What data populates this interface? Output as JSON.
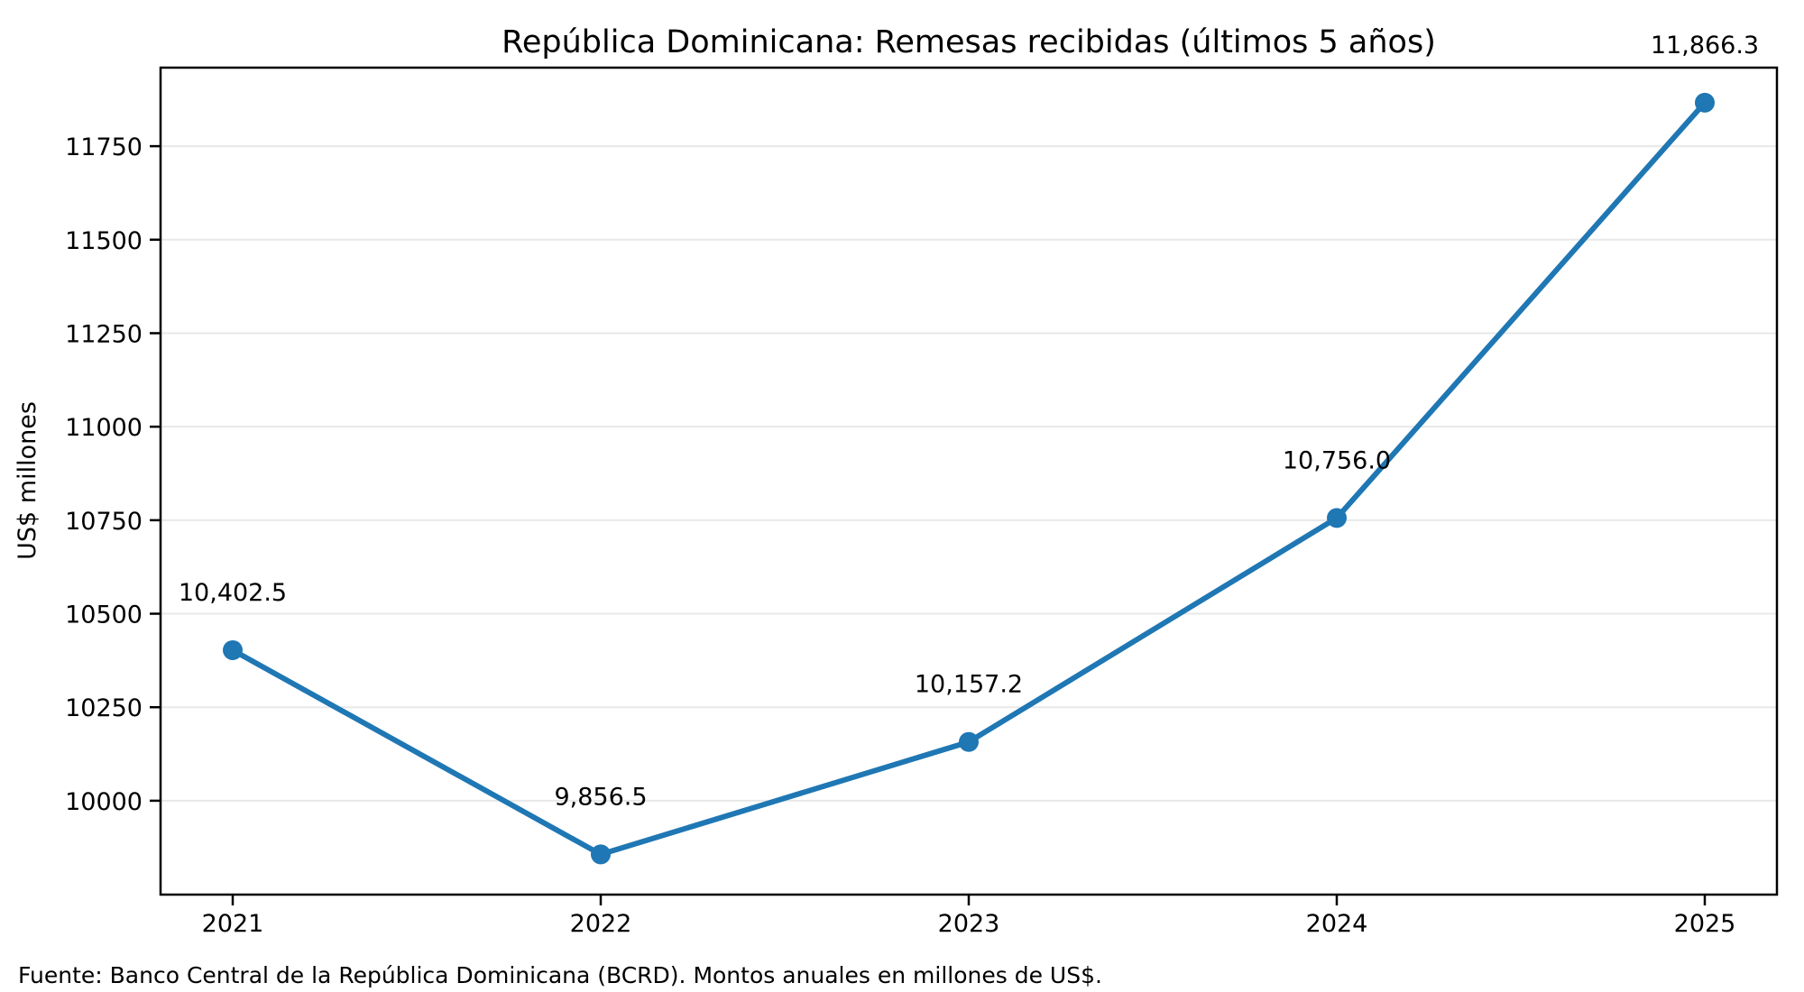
{
  "chart_data": {
    "type": "line",
    "title": "República Dominicana: Remesas recibidas (últimos 5 años)",
    "ylabel": "US$ millones",
    "xlabel": "",
    "source_note": "Fuente: Banco Central de la República Dominicana (BCRD). Montos anuales en millones de US$.",
    "categories": [
      "2021",
      "2022",
      "2023",
      "2024",
      "2025"
    ],
    "values": [
      10402.5,
      9856.5,
      10157.2,
      10756.0,
      11866.3
    ],
    "point_labels": [
      "10,402.5",
      "9,856.5",
      "10,157.2",
      "10,756.0",
      "11,866.3"
    ],
    "yticks": [
      10000,
      10250,
      10500,
      10750,
      11000,
      11250,
      11500,
      11750
    ],
    "ylim": [
      9749,
      11960
    ],
    "grid": "y-only",
    "legend": "none",
    "colors": {
      "line": "#1f77b4",
      "marker": "#1f77b4",
      "grid": "#e8e8e8",
      "spine": "#000000",
      "text": "#000000"
    }
  }
}
